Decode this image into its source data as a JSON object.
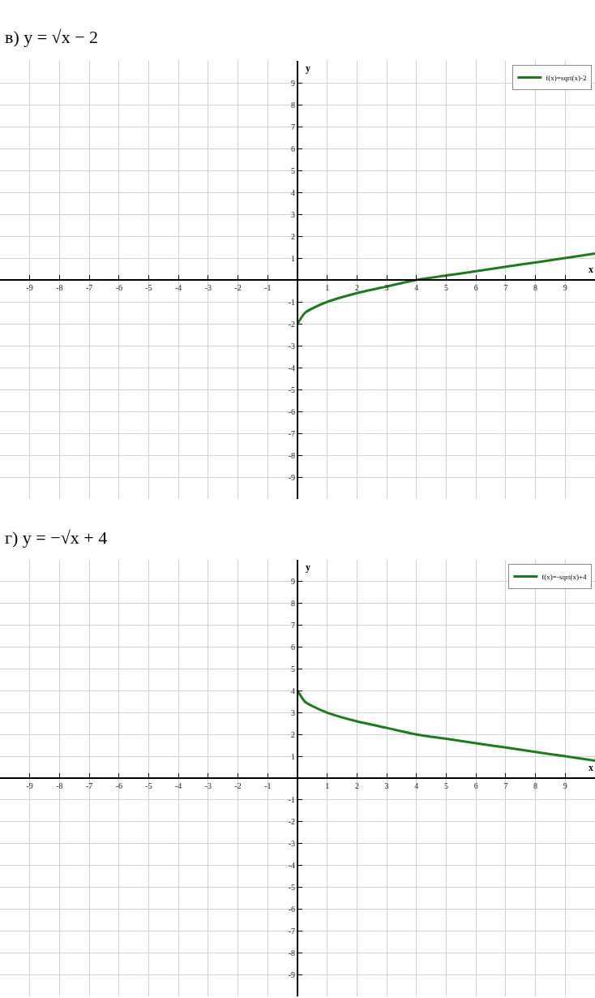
{
  "chart_data": [
    {
      "type": "line",
      "title": "в) y = √x − 2",
      "xlabel": "x",
      "ylabel": "y",
      "xlim": [
        -10,
        10
      ],
      "ylim": [
        -10,
        10
      ],
      "xticks": [
        -9,
        -8,
        -7,
        -6,
        -5,
        -4,
        -3,
        -2,
        -1,
        1,
        2,
        3,
        4,
        5,
        6,
        7,
        8,
        9
      ],
      "yticks": [
        -9,
        -8,
        -7,
        -6,
        -5,
        -4,
        -3,
        -2,
        -1,
        1,
        2,
        3,
        4,
        5,
        6,
        7,
        8,
        9
      ],
      "grid": true,
      "legend": "top right",
      "marker": "none",
      "line_style": "solid",
      "x": [
        0,
        0.25,
        0.5,
        1,
        2,
        3,
        4,
        5,
        6,
        7,
        8,
        9,
        10
      ],
      "series": [
        {
          "name": "f(x)=sqrt(x)-2",
          "color": "#1f7a1f",
          "values": [
            -2,
            -1.5,
            -1.3,
            -1,
            -0.6,
            -0.3,
            0,
            0.2,
            0.4,
            0.6,
            0.8,
            1,
            1.2
          ]
        }
      ]
    },
    {
      "type": "line",
      "title": "г) y = −√x + 4",
      "xlabel": "x",
      "ylabel": "y",
      "xlim": [
        -10,
        10
      ],
      "ylim": [
        -10,
        10
      ],
      "xticks": [
        -9,
        -8,
        -7,
        -6,
        -5,
        -4,
        -3,
        -2,
        -1,
        1,
        2,
        3,
        4,
        5,
        6,
        7,
        8,
        9
      ],
      "yticks": [
        -9,
        -8,
        -7,
        -6,
        -5,
        -4,
        -3,
        -2,
        -1,
        1,
        2,
        3,
        4,
        5,
        6,
        7,
        8,
        9
      ],
      "grid": true,
      "legend": "top right",
      "marker": "none",
      "line_style": "solid",
      "x": [
        0,
        0.25,
        0.5,
        1,
        2,
        3,
        4,
        5,
        6,
        7,
        8,
        9,
        10
      ],
      "series": [
        {
          "name": "f(x)=-sqrt(x)+4",
          "color": "#1f7a1f",
          "values": [
            4,
            3.5,
            3.3,
            3,
            2.6,
            2.3,
            2,
            1.8,
            1.6,
            1.4,
            1.2,
            1,
            0.8
          ]
        }
      ]
    }
  ]
}
